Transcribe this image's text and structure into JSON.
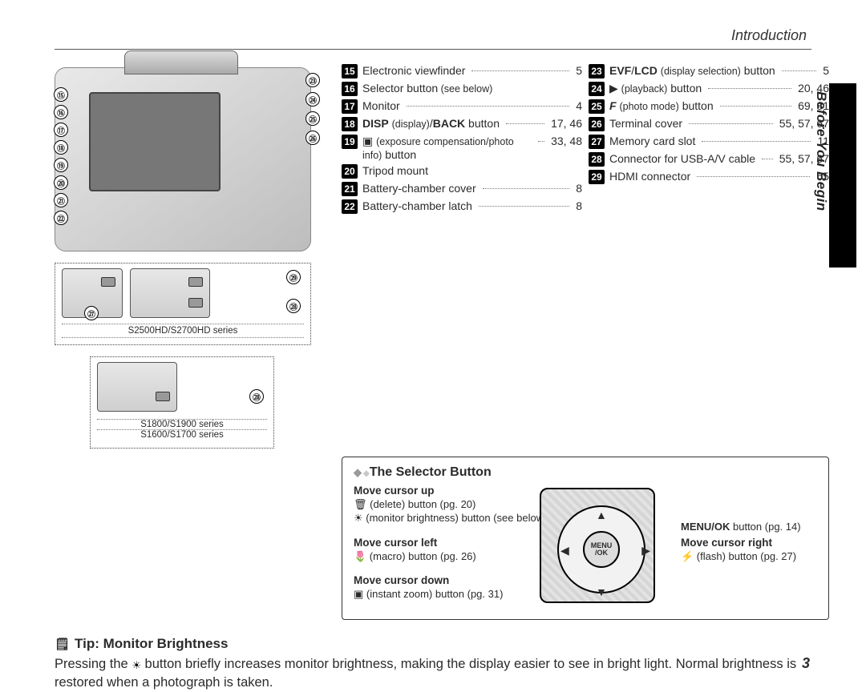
{
  "header": {
    "section": "Introduction",
    "sidebar_label": "Before You Begin",
    "page_number": "3"
  },
  "callouts_left": [
    "⑮",
    "⑯",
    "⑰",
    "⑱",
    "⑲",
    "⑳",
    "㉑",
    "㉒"
  ],
  "callouts_right": [
    "㉓",
    "㉔",
    "㉕",
    "㉖"
  ],
  "panels": {
    "top": {
      "marks": [
        "㉗",
        "㉙",
        "㉘"
      ],
      "caption": "S2500HD/S2700HD series"
    },
    "bottom": {
      "marks": [
        "㉘"
      ],
      "caption_a": "S1800/S1900 series",
      "caption_b": "S1600/S1700 series"
    }
  },
  "parts_col1": [
    {
      "n": "15",
      "label": "Electronic viewfinder",
      "pg": "5"
    },
    {
      "n": "16",
      "label": "Selector button",
      "small": "(see below)",
      "pg": ""
    },
    {
      "n": "17",
      "label": "Monitor",
      "pg": "4"
    },
    {
      "n": "18",
      "label_html": "<b>DISP</b> <span class='paren'>(display)</span>/<b>BACK</b> button",
      "pg": "17, 46"
    },
    {
      "n": "19",
      "label_html": "▣ <span class='paren'>(exposure compensation/photo info)</span> button",
      "pg": "33, 48"
    },
    {
      "n": "20",
      "label": "Tripod mount",
      "pg": ""
    },
    {
      "n": "21",
      "label": "Battery-chamber cover",
      "pg": "8"
    },
    {
      "n": "22",
      "label": "Battery-chamber latch",
      "pg": "8"
    }
  ],
  "parts_col2": [
    {
      "n": "23",
      "label_html": "<b>EVF</b>/<b>LCD</b> <span class='paren'>(display selection)</span> button",
      "pg": "5"
    },
    {
      "n": "24",
      "label_html": "▶ <span class='paren'>(playback)</span> button",
      "pg": "20, 46"
    },
    {
      "n": "25",
      "label_html": "<b><i>F</i></b> <span class='paren'>(photo mode)</span> button",
      "pg": "69, 81"
    },
    {
      "n": "26",
      "label": "Terminal cover",
      "pg": "55, 57, 67"
    },
    {
      "n": "27",
      "label": "Memory card slot",
      "pg": "11"
    },
    {
      "n": "28",
      "label": "Connector for USB-A/V cable",
      "pg": "55, 57, 67"
    },
    {
      "n": "29",
      "label": "HDMI connector",
      "pg": "55"
    }
  ],
  "selector": {
    "title": "The Selector Button",
    "up_h": "Move cursor up",
    "up_1": "🗑 (delete) button (pg. 20)",
    "up_2": "☀ (monitor brightness) button (see below)",
    "left_h": "Move cursor left",
    "left_1": "🌷 (macro) button (pg. 26)",
    "right_h": "Move cursor right",
    "right_1": "⚡ (flash) button (pg. 27)",
    "down_h": "Move cursor down",
    "down_1": "▣ (instant zoom) button (pg. 31)",
    "menuok": "MENU/OK button (pg. 14)",
    "core": "MENU /OK"
  },
  "tip": {
    "heading": "Tip: Monitor Brightness",
    "body_a": "Pressing the ",
    "body_b": " button briefly increases monitor brightness, making the display easier to see in bright light.  Normal brightness is restored when a photograph is taken."
  }
}
